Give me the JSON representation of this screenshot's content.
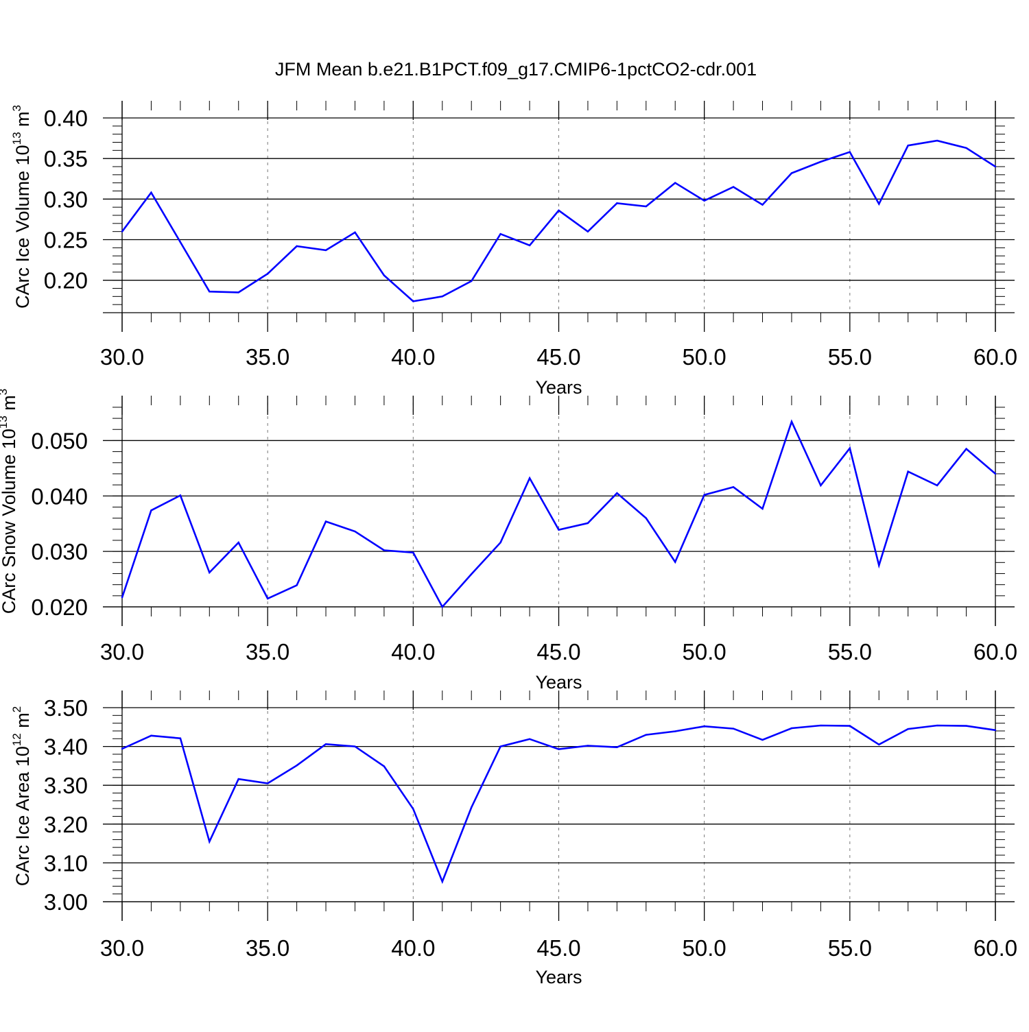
{
  "title": "JFM Mean b.e21.B1PCT.f09_g17.CMIP6-1pctCO2-cdr.001",
  "chart_data": [
    {
      "type": "line",
      "title": "JFM Mean b.e21.B1PCT.f09_g17.CMIP6-1pctCO2-cdr.001",
      "ylabel": "CArc Ice Volume 10",
      "ylabel_exp": "13",
      "ylabel_unit": "m",
      "ylabel_unit_exp": "3",
      "xlabel": "Years",
      "xlim": [
        30,
        60
      ],
      "ylim": [
        0.16,
        0.4
      ],
      "yticks": [
        0.2,
        0.25,
        0.3,
        0.35,
        0.4
      ],
      "yticklabels": [
        "0.20",
        "0.25",
        "0.30",
        "0.35",
        "0.40"
      ],
      "yminor_step": 0.01,
      "xticks": [
        30,
        35,
        40,
        45,
        50,
        55,
        60
      ],
      "xticklabels": [
        "30.0",
        "35.0",
        "40.0",
        "45.0",
        "50.0",
        "55.0",
        "60.0"
      ],
      "grid": "x-major-dashed",
      "color": "#0000ff",
      "x": [
        30,
        31,
        32,
        33,
        34,
        35,
        36,
        37,
        38,
        39,
        40,
        41,
        42,
        43,
        44,
        45,
        46,
        47,
        48,
        49,
        50,
        51,
        52,
        53,
        54,
        55,
        56,
        57,
        58,
        59,
        60
      ],
      "y": [
        0.26,
        0.308,
        0.247,
        0.186,
        0.185,
        0.208,
        0.242,
        0.237,
        0.259,
        0.206,
        0.174,
        0.18,
        0.199,
        0.257,
        0.243,
        0.286,
        0.26,
        0.295,
        0.291,
        0.32,
        0.298,
        0.315,
        0.293,
        0.332,
        0.346,
        0.358,
        0.294,
        0.366,
        0.372,
        0.363,
        0.34
      ]
    },
    {
      "type": "line",
      "ylabel": "CArc Snow Volume 10",
      "ylabel_exp": "13",
      "ylabel_unit": "m",
      "ylabel_unit_exp": "3",
      "xlabel": "Years",
      "xlim": [
        30,
        60
      ],
      "ylim": [
        0.02,
        0.055
      ],
      "yticks": [
        0.02,
        0.03,
        0.04,
        0.05
      ],
      "yticklabels": [
        "0.020",
        "0.030",
        "0.040",
        "0.050"
      ],
      "yminor_step": 0.002,
      "xticks": [
        30,
        35,
        40,
        45,
        50,
        55,
        60
      ],
      "xticklabels": [
        "30.0",
        "35.0",
        "40.0",
        "45.0",
        "50.0",
        "55.0",
        "60.0"
      ],
      "grid": "x-major-dashed",
      "color": "#0000ff",
      "x": [
        30,
        31,
        32,
        33,
        34,
        35,
        36,
        37,
        38,
        39,
        40,
        41,
        42,
        43,
        44,
        45,
        46,
        47,
        48,
        49,
        50,
        51,
        52,
        53,
        54,
        55,
        56,
        57,
        58,
        59,
        60
      ],
      "y": [
        0.0217,
        0.0374,
        0.0401,
        0.0262,
        0.0316,
        0.0215,
        0.0239,
        0.0354,
        0.0336,
        0.0302,
        0.0298,
        0.02,
        0.0259,
        0.0316,
        0.0432,
        0.0339,
        0.0351,
        0.0405,
        0.036,
        0.0281,
        0.0402,
        0.0416,
        0.0377,
        0.0534,
        0.0419,
        0.0486,
        0.0275,
        0.0444,
        0.0419,
        0.0485,
        0.044
      ]
    },
    {
      "type": "line",
      "ylabel": "CArc Ice Area 10",
      "ylabel_exp": "12",
      "ylabel_unit": "m",
      "ylabel_unit_exp": "2",
      "xlabel": "Years",
      "xlim": [
        30,
        60
      ],
      "ylim": [
        3.0,
        3.5
      ],
      "yticks": [
        3.0,
        3.1,
        3.2,
        3.3,
        3.4,
        3.5
      ],
      "yticklabels": [
        "3.00",
        "3.10",
        "3.20",
        "3.30",
        "3.40",
        "3.50"
      ],
      "yminor_step": 0.02,
      "xticks": [
        30,
        35,
        40,
        45,
        50,
        55,
        60
      ],
      "xticklabels": [
        "30.0",
        "35.0",
        "40.0",
        "45.0",
        "50.0",
        "55.0",
        "60.0"
      ],
      "grid": "x-major-dashed",
      "color": "#0000ff",
      "x": [
        30,
        31,
        32,
        33,
        34,
        35,
        36,
        37,
        38,
        39,
        40,
        41,
        42,
        43,
        44,
        45,
        46,
        47,
        48,
        49,
        50,
        51,
        52,
        53,
        54,
        55,
        56,
        57,
        58,
        59,
        60
      ],
      "y": [
        3.394,
        3.428,
        3.421,
        3.155,
        3.316,
        3.305,
        3.351,
        3.406,
        3.4,
        3.349,
        3.239,
        3.052,
        3.243,
        3.4,
        3.419,
        3.393,
        3.402,
        3.398,
        3.43,
        3.439,
        3.452,
        3.446,
        3.417,
        3.447,
        3.454,
        3.453,
        3.405,
        3.445,
        3.454,
        3.453,
        3.442
      ]
    }
  ]
}
